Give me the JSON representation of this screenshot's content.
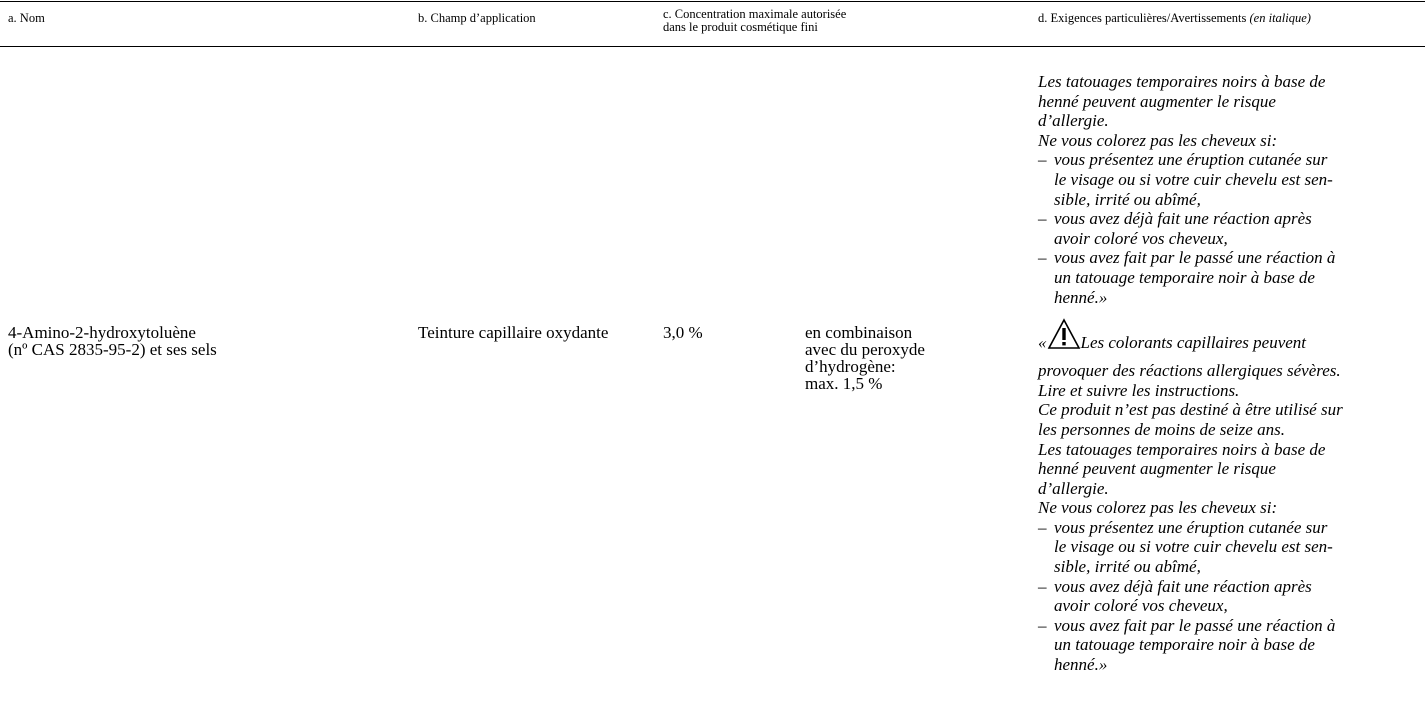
{
  "header": {
    "a": "a. Nom",
    "b": "b. Champ d’application",
    "c": [
      "c. Concentration maximale autorisée",
      "dans le produit cosmétique fini"
    ],
    "d": "d. Exigences particulières/Avertissements",
    "d_italic": "(en italique)"
  },
  "row": {
    "name": [
      "4-Amino-2-hydroxytoluène",
      "(nº CAS 2835-95-2) et ses sels"
    ],
    "field": "Teinture capillaire oxydante",
    "concentration": "3,0 %",
    "note": [
      "en combinaison",
      "avec du peroxyde",
      "d’hydrogène:",
      "max. 1,5 %"
    ],
    "warnings": [
      {
        "lines": [
          "Les tatouages temporaires noirs à base de",
          "henné peuvent augmenter le risque",
          "d’allergie.",
          "Ne vous colorez pas les cheveux si:"
        ],
        "bullet": "–",
        "items": [
          [
            "vous présentez une éruption cutanée sur",
            "le visage ou si votre cuir chevelu est sen-",
            "sible, irrité ou abîmé,"
          ],
          [
            "vous avez déjà fait une réaction après",
            "avoir coloré vos cheveux,"
          ],
          [
            "vous avez fait par le passé une réaction à",
            "un tatouage temporaire noir à base de",
            "henné.»"
          ]
        ]
      },
      {
        "open": "«",
        "lines": [
          "Les colorants capillaires peuvent",
          "provoquer des réactions allergiques sévères.",
          "Lire et suivre les instructions.",
          "Ce produit n’est pas destiné à être utilisé sur",
          "les personnes de moins de seize ans.",
          "Les tatouages temporaires noirs à base de",
          "henné peuvent augmenter le risque",
          "d’allergie.",
          "Ne vous colorez pas les cheveux si:"
        ],
        "bullet": "–",
        "items": [
          [
            "vous présentez une éruption cutanée sur",
            "le visage ou si votre cuir chevelu est sen-",
            "sible, irrité ou abîmé,"
          ],
          [
            "vous avez déjà fait une réaction après",
            "avoir coloré vos cheveux,"
          ],
          [
            "vous avez fait par le passé une réaction à",
            "un tatouage temporaire noir à base de",
            "henné.»"
          ]
        ]
      }
    ]
  }
}
